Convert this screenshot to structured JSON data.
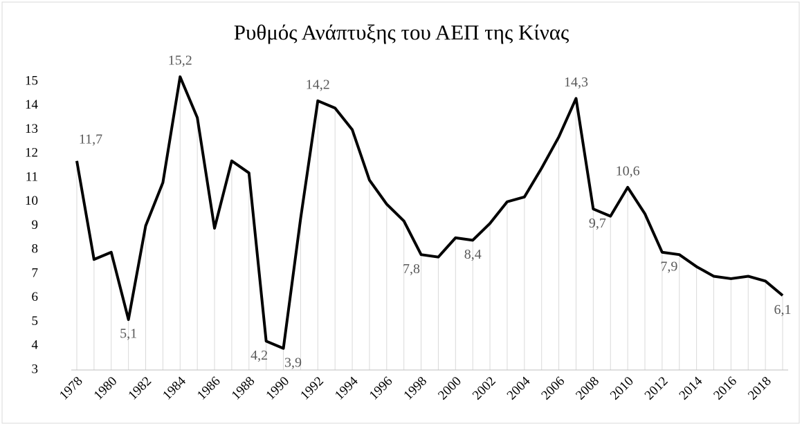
{
  "chart_data": {
    "type": "line",
    "title": "Ρυθμός Ανάπτυξης του ΑΕΠ της Κίνας",
    "categories": [
      "1978",
      null,
      "1980",
      null,
      "1982",
      null,
      "1984",
      null,
      "1986",
      null,
      "1988",
      null,
      "1990",
      null,
      "1992",
      null,
      "1994",
      null,
      "1996",
      null,
      "1998",
      null,
      "2000",
      null,
      "2002",
      null,
      "2004",
      null,
      "2006",
      null,
      "2008",
      null,
      "2010",
      null,
      "2012",
      null,
      "2014",
      null,
      "2016",
      null,
      "2018",
      null
    ],
    "series": [
      {
        "name": null,
        "color": "#000000",
        "values": [
          11.7,
          7.6,
          7.9,
          5.1,
          9.0,
          10.8,
          15.2,
          13.5,
          8.9,
          11.7,
          11.2,
          4.2,
          3.9,
          9.3,
          14.2,
          13.9,
          13.0,
          10.9,
          9.9,
          9.2,
          7.8,
          7.7,
          8.5,
          8.4,
          9.1,
          10.0,
          10.2,
          11.4,
          12.7,
          14.3,
          9.7,
          9.4,
          10.6,
          9.5,
          7.9,
          7.8,
          7.3,
          6.9,
          6.8,
          6.9,
          6.7,
          6.1
        ],
        "value_labels": [
          "11,7",
          null,
          null,
          "5,1",
          null,
          null,
          "15,2",
          null,
          null,
          null,
          null,
          "4,2",
          "3,9",
          null,
          "14,2",
          null,
          null,
          null,
          null,
          null,
          "7,8",
          null,
          null,
          "8,4",
          null,
          null,
          null,
          null,
          null,
          "14,3",
          "9,7",
          null,
          "10,6",
          null,
          "7,9",
          null,
          null,
          null,
          null,
          null,
          null,
          "6,1"
        ]
      }
    ],
    "ylim": [
      3,
      15
    ],
    "yticks": [
      3,
      4,
      5,
      6,
      7,
      8,
      9,
      10,
      11,
      12,
      13,
      14,
      15
    ]
  }
}
